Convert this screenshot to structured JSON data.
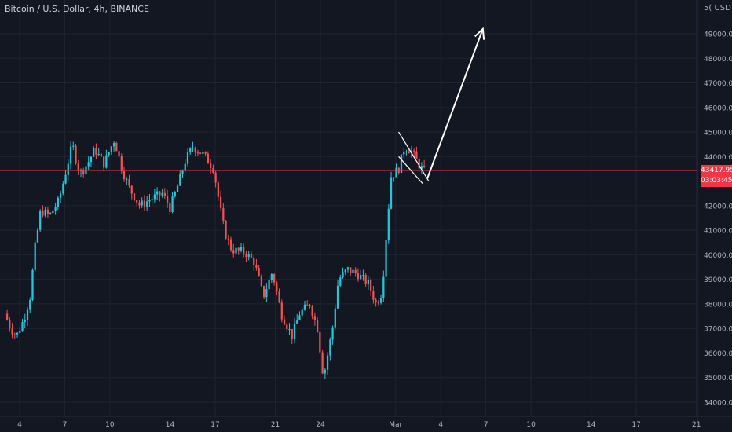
{
  "header": {
    "symbol": "Bitcoin / U.S. Dollar",
    "interval": "4h",
    "exchange": "BINANCE",
    "title": "Bitcoin / U.S. Dollar, 4h, BINANCE"
  },
  "price_axis": {
    "currency_label": "USD",
    "top_label_fragment": "5(",
    "last_price": "43417.95",
    "countdown": "03:03:45"
  },
  "colors": {
    "background": "#131722",
    "up": "#26c6da",
    "down": "#ef5350",
    "grid": "#1f2433",
    "price_line": "#f23645",
    "arrow": "#ffffff"
  },
  "chart_data": {
    "type": "candlestick",
    "title": "Bitcoin / U.S. Dollar, 4h, BINANCE",
    "y_unit": "USD",
    "ylim": [
      33800,
      50600
    ],
    "yticks": [
      34000,
      35000,
      36000,
      37000,
      38000,
      39000,
      40000,
      41000,
      42000,
      43000,
      44000,
      45000,
      46000,
      47000,
      48000,
      49000
    ],
    "ytick_labels": [
      "34000.00",
      "35000.00",
      "36000.00",
      "37000.00",
      "38000.00",
      "39000.00",
      "40000.00",
      "41000.00",
      "42000.00",
      "43000.00",
      "44000.00",
      "45000.00",
      "46000.00",
      "47000.00",
      "48000.00",
      "49000.00"
    ],
    "x_day_range": [
      3,
      23
    ],
    "xticks": [
      {
        "day": 4,
        "label": "4"
      },
      {
        "day": 7,
        "label": "7"
      },
      {
        "day": 10,
        "label": "10"
      },
      {
        "day": 14,
        "label": "14"
      },
      {
        "day": 17,
        "label": "17"
      },
      {
        "day": 21,
        "label": "21"
      },
      {
        "day": 24,
        "label": "24"
      },
      {
        "day": 29,
        "label": "Mar"
      },
      {
        "day": 32,
        "label": "4"
      },
      {
        "day": 35,
        "label": "7"
      },
      {
        "day": 38,
        "label": "10"
      },
      {
        "day": 42,
        "label": "14"
      },
      {
        "day": 45,
        "label": "17"
      },
      {
        "day": 49,
        "label": "21"
      }
    ],
    "grid": true,
    "last_price": 43417.95,
    "anchors": [
      [
        3.0,
        37600
      ],
      [
        3.4,
        37000
      ],
      [
        3.8,
        36700
      ],
      [
        4.3,
        37400
      ],
      [
        4.7,
        38300
      ],
      [
        5.0,
        40200
      ],
      [
        5.4,
        41800
      ],
      [
        6.0,
        41600
      ],
      [
        6.6,
        42200
      ],
      [
        7.0,
        43200
      ],
      [
        7.5,
        44500
      ],
      [
        8.0,
        43300
      ],
      [
        8.5,
        43700
      ],
      [
        9.0,
        44300
      ],
      [
        9.6,
        43700
      ],
      [
        10.3,
        44700
      ],
      [
        10.8,
        43500
      ],
      [
        11.3,
        42700
      ],
      [
        12.0,
        42000
      ],
      [
        12.8,
        42300
      ],
      [
        13.5,
        42500
      ],
      [
        14.0,
        41900
      ],
      [
        14.5,
        42800
      ],
      [
        15.0,
        43800
      ],
      [
        15.5,
        44400
      ],
      [
        16.2,
        44100
      ],
      [
        16.9,
        43500
      ],
      [
        17.3,
        42000
      ],
      [
        17.6,
        41000
      ],
      [
        18.1,
        40200
      ],
      [
        19.0,
        40100
      ],
      [
        19.6,
        39700
      ],
      [
        20.2,
        38300
      ],
      [
        20.8,
        39300
      ],
      [
        21.4,
        37600
      ],
      [
        22.1,
        36700
      ],
      [
        22.6,
        37600
      ],
      [
        23.3,
        38000
      ],
      [
        23.8,
        37000
      ],
      [
        24.2,
        35000
      ],
      [
        24.8,
        37000
      ],
      [
        25.2,
        39000
      ],
      [
        25.8,
        39400
      ],
      [
        26.5,
        39200
      ],
      [
        27.2,
        38800
      ],
      [
        27.7,
        38000
      ],
      [
        28.1,
        38500
      ],
      [
        28.4,
        41000
      ],
      [
        28.7,
        43200
      ],
      [
        29.2,
        43500
      ],
      [
        29.6,
        44400
      ],
      [
        30.1,
        44200
      ],
      [
        30.5,
        43700
      ],
      [
        30.9,
        43400
      ]
    ],
    "pattern": {
      "type": "falling wedge",
      "upper_line": [
        [
          29.2,
          45000
        ],
        [
          31.2,
          43000
        ]
      ],
      "lower_line": [
        [
          29.2,
          44000
        ],
        [
          30.8,
          42900
        ]
      ]
    },
    "projection_arrow": {
      "from": [
        31.1,
        43100
      ],
      "to": [
        34.8,
        49200
      ]
    }
  }
}
